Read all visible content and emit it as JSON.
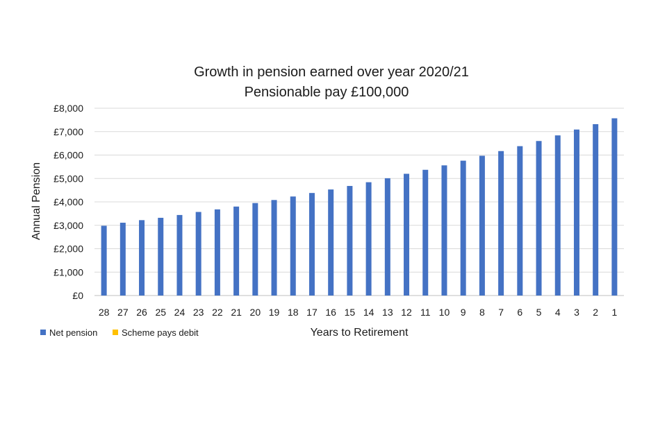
{
  "chart_data": {
    "type": "bar",
    "title": [
      "Growth in pension earned over year 2020/21",
      "Pensionable pay £100,000"
    ],
    "xlabel": "Years to Retirement",
    "ylabel": "Annual Pension",
    "ylim": [
      0,
      8000
    ],
    "yticks": [
      "£0",
      "£1,000",
      "£2,000",
      "£3,000",
      "£4,000",
      "£5,000",
      "£6,000",
      "£7,000",
      "£8,000"
    ],
    "grid": true,
    "legend_position": "bottom-left",
    "categories": [
      "28",
      "27",
      "26",
      "25",
      "24",
      "23",
      "22",
      "21",
      "20",
      "19",
      "18",
      "17",
      "16",
      "15",
      "14",
      "13",
      "12",
      "11",
      "10",
      "9",
      "8",
      "7",
      "6",
      "5",
      "4",
      "3",
      "2",
      "1"
    ],
    "series": [
      {
        "name": "Net pension",
        "color": "#4472C4",
        "values": [
          2980,
          3110,
          3220,
          3320,
          3440,
          3570,
          3680,
          3800,
          3950,
          4080,
          4230,
          4380,
          4530,
          4680,
          4840,
          5010,
          5200,
          5370,
          5560,
          5760,
          5970,
          6170,
          6380,
          6600,
          6840,
          7090,
          7320,
          7570
        ]
      },
      {
        "name": "Scheme pays debit",
        "color": "#FFC000",
        "values": [
          0,
          0,
          0,
          0,
          0,
          0,
          0,
          0,
          0,
          0,
          0,
          0,
          0,
          0,
          0,
          0,
          0,
          0,
          0,
          0,
          0,
          0,
          0,
          0,
          0,
          0,
          0,
          0
        ]
      }
    ]
  }
}
